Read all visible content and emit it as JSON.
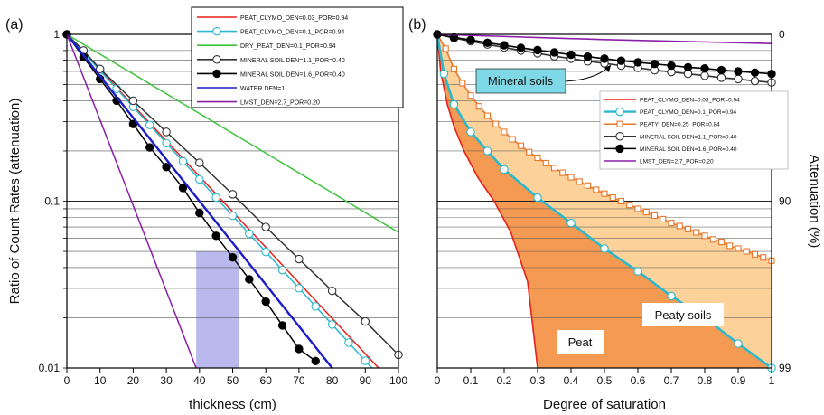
{
  "chart_data": [
    {
      "panel_label": "(a)",
      "type": "line",
      "ylabel": "Ratio of Count Rates (attenuation)",
      "xlabel": "thickness (cm)",
      "xlim": [
        0,
        100
      ],
      "ylim": [
        0.01,
        1
      ],
      "yscale": "log",
      "xticks": [
        "0",
        "10",
        "20",
        "30",
        "40",
        "50",
        "60",
        "70",
        "80",
        "90",
        "100"
      ],
      "yticks": [
        "1",
        "0.1",
        "0.01"
      ],
      "grid": "horizontal log gridlines",
      "legend_placement": "top-center",
      "shaded_band": {
        "x_from": 39,
        "x_to": 52,
        "color": "#9b9be6"
      },
      "series": [
        {
          "name": "PEAT_CLYMO_DEN=0.03_POR=0.94",
          "color": "#e8201c",
          "marker": "none",
          "x": [
            0,
            94
          ],
          "y": [
            1,
            0.01
          ]
        },
        {
          "name": "PEAT_CLYMO_DEN=0.1_POR=0.94",
          "color": "#2bb8cc",
          "marker": "open-circle",
          "x": [
            0,
            92
          ],
          "y": [
            1,
            0.01
          ]
        },
        {
          "name": "DRY_PEAT_DEN=0.1_POR=0.94",
          "color": "#3cc43c",
          "marker": "none",
          "x": [
            0,
            100
          ],
          "y": [
            1,
            0.065
          ]
        },
        {
          "name": "MINERAL SOIL DEN=1.1_POR=0.40",
          "color": "#333333",
          "marker": "open-circle",
          "x": [
            0,
            5,
            10,
            20,
            30,
            40,
            50,
            60,
            70,
            80,
            90,
            100
          ],
          "y": [
            1,
            0.8,
            0.62,
            0.4,
            0.26,
            0.17,
            0.11,
            0.07,
            0.045,
            0.029,
            0.019,
            0.012
          ]
        },
        {
          "name": "MINERAL SOIL DEN=1.6_POR=0.40",
          "color": "#000000",
          "marker": "filled-circle",
          "x": [
            0,
            5,
            10,
            15,
            20,
            25,
            30,
            35,
            40,
            45,
            50,
            55,
            60,
            65,
            70,
            75
          ],
          "y": [
            1,
            0.73,
            0.54,
            0.4,
            0.29,
            0.21,
            0.16,
            0.12,
            0.085,
            0.062,
            0.046,
            0.034,
            0.025,
            0.018,
            0.013,
            0.011
          ]
        },
        {
          "name": "WATER DEN=1",
          "color": "#1c1cc8",
          "marker": "none",
          "x": [
            0,
            80
          ],
          "y": [
            1,
            0.01
          ]
        },
        {
          "name": "LMST_DEN=2.7_POR=0.20",
          "color": "#8a1fa8",
          "marker": "none",
          "x": [
            0,
            39
          ],
          "y": [
            1,
            0.01
          ]
        }
      ]
    },
    {
      "panel_label": "(b)",
      "type": "line",
      "xlabel": "Degree of saturation",
      "ylabel": "Attenuation (%)",
      "xlim": [
        0,
        1
      ],
      "ylim": [
        0,
        99
      ],
      "ytick_labels_right": [
        "0",
        "90",
        "99"
      ],
      "xticks": [
        "0",
        "0.1",
        "0.2",
        "0.3",
        "0.4",
        "0.5",
        "0.6",
        "0.7",
        "0.8",
        "0.9",
        "1"
      ],
      "legend_placement": "right-middle",
      "annotations": [
        "Mineral soils",
        "Peaty soils",
        "Peat"
      ],
      "series": [
        {
          "name": "PEAT_CLYMO_DEN=0.03_POR=0.94",
          "color": "#e8201c",
          "marker": "none",
          "x": [
            0,
            0.01,
            0.03,
            0.05,
            0.08,
            0.12,
            0.17,
            0.22,
            0.27,
            0.3
          ],
          "y": [
            0,
            40,
            62,
            72,
            80,
            86,
            90,
            93.5,
            96.7,
            99
          ]
        },
        {
          "name": "PEAT_CLYMO_DEN=0.1_POR=0.94",
          "color": "#2bb8cc",
          "marker": "open-circle",
          "x": [
            0,
            0.02,
            0.05,
            0.1,
            0.15,
            0.2,
            0.3,
            0.4,
            0.5,
            0.6,
            0.7,
            0.8,
            0.9,
            1
          ],
          "y": [
            0,
            42,
            62,
            74,
            80,
            84.5,
            89.5,
            92.6,
            94.8,
            96.2,
            97.3,
            98,
            98.6,
            99
          ]
        },
        {
          "name": "PEATY_DEN=0.25_POR=0.84",
          "color": "#e8762a",
          "marker": "open-square",
          "x": [
            0,
            0.025,
            0.05,
            0.075,
            0.1,
            0.125,
            0.15,
            0.175,
            0.2,
            0.225,
            0.25,
            0.275,
            0.3,
            0.325,
            0.35,
            0.375,
            0.4,
            0.425,
            0.45,
            0.475,
            0.5,
            0.525,
            0.55,
            0.575,
            0.6,
            0.625,
            0.65,
            0.675,
            0.7,
            0.725,
            0.75,
            0.775,
            0.8,
            0.825,
            0.85,
            0.875,
            0.9,
            0.925,
            0.95,
            0.975,
            1
          ],
          "y": [
            0,
            18,
            38,
            49,
            57,
            63,
            67.5,
            71,
            74,
            76.5,
            78.5,
            80.3,
            81.8,
            83.1,
            84.2,
            85.2,
            86.1,
            86.9,
            87.6,
            88.3,
            88.9,
            89.5,
            90,
            90.5,
            91,
            91.4,
            91.8,
            92.2,
            92.6,
            92.9,
            93.2,
            93.5,
            93.8,
            94.1,
            94.3,
            94.6,
            94.8,
            95,
            95.2,
            95.4,
            95.6
          ]
        },
        {
          "name": "MINERAL SOIL DEN=1.1_POR=0.40",
          "color": "#333333",
          "marker": "open-circle",
          "x": [
            0,
            0.05,
            0.1,
            0.15,
            0.2,
            0.25,
            0.3,
            0.35,
            0.4,
            0.45,
            0.5,
            0.55,
            0.6,
            0.65,
            0.7,
            0.75,
            0.8,
            0.85,
            0.9,
            0.95,
            1
          ],
          "y": [
            0,
            5,
            9,
            13,
            16.5,
            20,
            23,
            26,
            28.5,
            31,
            33,
            35,
            37,
            39,
            40.5,
            42,
            43.5,
            45,
            46,
            47.5,
            48.5
          ]
        },
        {
          "name": "MINERAL SOIL DEN=1.6_POR=0.40",
          "color": "#000000",
          "marker": "filled-circle",
          "x": [
            0,
            0.05,
            0.1,
            0.15,
            0.2,
            0.25,
            0.3,
            0.35,
            0.4,
            0.45,
            0.5,
            0.55,
            0.6,
            0.65,
            0.7,
            0.75,
            0.8,
            0.85,
            0.9,
            0.95,
            1
          ],
          "y": [
            0,
            4,
            7.5,
            11,
            14,
            17,
            19.5,
            22,
            24.5,
            26.5,
            28.5,
            30.5,
            32,
            33.5,
            35,
            36.5,
            37.5,
            39,
            40,
            41,
            42
          ]
        },
        {
          "name": "LMST_DEN=2.7_POR=0.20",
          "color": "#8a1fa8",
          "marker": "none",
          "x": [
            0,
            0.5,
            1
          ],
          "y": [
            0,
            7,
            12
          ]
        }
      ]
    }
  ]
}
